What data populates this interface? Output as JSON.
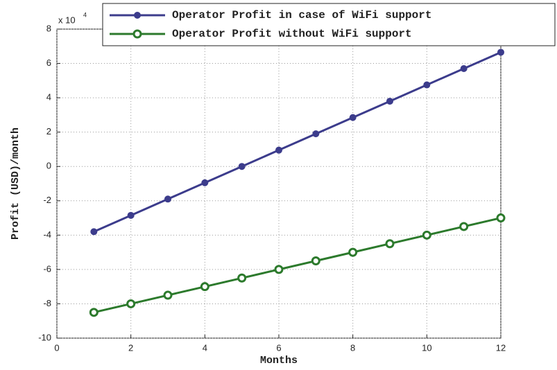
{
  "chart_data": {
    "type": "line",
    "x_label": "Months",
    "y_label": "Profit (USD)/month",
    "y_scale_label": "x 10",
    "y_scale_exponent": "4",
    "x": [
      1,
      2,
      3,
      4,
      5,
      6,
      7,
      8,
      9,
      10,
      11,
      12
    ],
    "series": [
      {
        "name": "Operator Profit in case of WiFi support",
        "color": "#3c3c8c",
        "marker_filled": true,
        "values": [
          -3.8,
          -2.85,
          -1.9,
          -0.95,
          0,
          0.95,
          1.9,
          2.85,
          3.8,
          4.75,
          5.7,
          6.65
        ]
      },
      {
        "name": "Operator Profit without WiFi support",
        "color": "#2c7a2c",
        "marker_filled": false,
        "values": [
          -8.5,
          -8,
          -7.5,
          -7,
          -6.5,
          -6,
          -5.5,
          -5,
          -4.5,
          -4,
          -3.5,
          -3
        ]
      }
    ],
    "xlim": [
      0,
      12
    ],
    "xticks": [
      0,
      2,
      4,
      6,
      8,
      10,
      12
    ],
    "ylim": [
      -10,
      8
    ],
    "yticks": [
      -10,
      -8,
      -6,
      -4,
      -2,
      0,
      2,
      4,
      6,
      8
    ],
    "grid": true,
    "legend": "top right"
  }
}
